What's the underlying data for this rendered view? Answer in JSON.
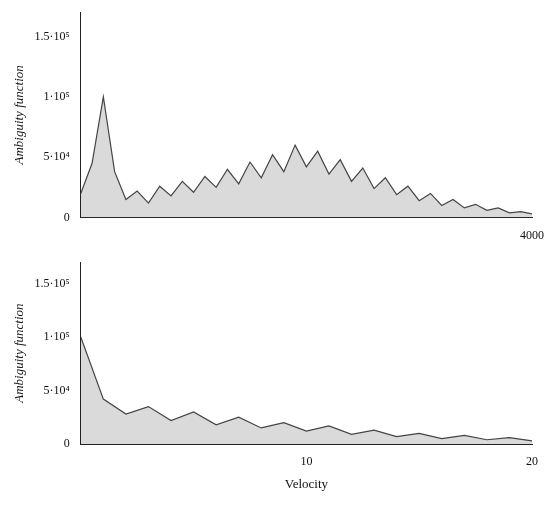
{
  "chart_data": [
    {
      "type": "line",
      "ylabel": "Ambiguity function",
      "x": [
        0,
        100,
        200,
        300,
        400,
        500,
        600,
        700,
        800,
        900,
        1000,
        1100,
        1200,
        1300,
        1400,
        1500,
        1600,
        1700,
        1800,
        1900,
        2000,
        2100,
        2200,
        2300,
        2400,
        2500,
        2600,
        2700,
        2800,
        2900,
        3000,
        3100,
        3200,
        3300,
        3400,
        3500,
        3600,
        3700,
        3800,
        3900,
        4000
      ],
      "values": [
        20000,
        45000,
        100000,
        38000,
        15000,
        22000,
        12000,
        26000,
        18000,
        30000,
        21000,
        34000,
        25000,
        40000,
        28000,
        46000,
        33000,
        52000,
        38000,
        60000,
        42000,
        55000,
        36000,
        48000,
        30000,
        41000,
        24000,
        33000,
        19000,
        26000,
        14000,
        20000,
        10000,
        15000,
        8000,
        11000,
        6000,
        8000,
        4000,
        5000,
        3000
      ],
      "color": "#444444",
      "marker": "none",
      "line_style": "solid",
      "xlim": [
        0,
        4000
      ],
      "xticks": [
        4000
      ],
      "ylim": [
        0,
        170000
      ],
      "yticks": [
        0,
        {
          "value": 50000,
          "label": "5·10⁴"
        },
        {
          "value": 100000,
          "label": "1·10⁵"
        },
        {
          "value": 150000,
          "label": "1.5·10⁵"
        }
      ],
      "grid": false
    },
    {
      "type": "line",
      "xlabel": "Velocity",
      "ylabel": "Ambiguity function",
      "x": [
        0,
        1,
        2,
        3,
        4,
        5,
        6,
        7,
        8,
        9,
        10,
        11,
        12,
        13,
        14,
        15,
        16,
        17,
        18,
        19,
        20
      ],
      "values": [
        100000,
        42000,
        28000,
        35000,
        22000,
        30000,
        18000,
        25000,
        15000,
        20000,
        12000,
        17000,
        9000,
        13000,
        7000,
        10000,
        5000,
        8000,
        4000,
        6000,
        3000
      ],
      "color": "#444444",
      "marker": "none",
      "line_style": "solid",
      "xlim": [
        0,
        20
      ],
      "xticks": [
        10,
        20
      ],
      "ylim": [
        0,
        170000
      ],
      "yticks": [
        0,
        {
          "value": 50000,
          "label": "5·10⁴"
        },
        {
          "value": 100000,
          "label": "1·10⁵"
        },
        {
          "value": 150000,
          "label": "1.5·10⁵"
        }
      ],
      "grid": false
    }
  ]
}
